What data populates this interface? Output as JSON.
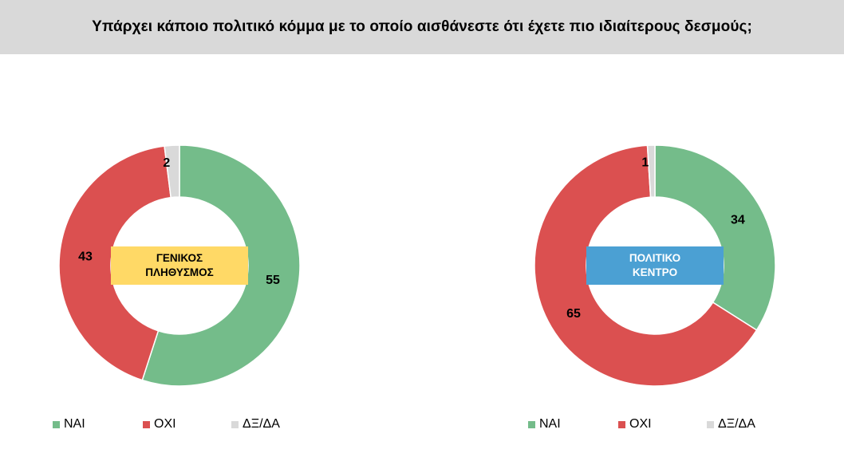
{
  "header": {
    "title": "Υπάρχει κάποιο πολιτικό κόμμα με το οποίο αισθάνεστε ότι έχετε πιο ιδιαίτερους δεσμούς;"
  },
  "colors": {
    "yes": "#74bc8a",
    "no": "#db5050",
    "dk": "#d9d9d9",
    "general_box": "#ffd966",
    "center_box": "#4ba0d3"
  },
  "chart_data": [
    {
      "type": "pie",
      "center_label": [
        "ΓΕΝΙΚΟΣ",
        "ΠΛΗΘΥΣΜΟΣ"
      ],
      "categories": [
        "ΝΑΙ",
        "ΟΧΙ",
        "ΔΞ/ΔΑ"
      ],
      "values": [
        55,
        43,
        2
      ],
      "legend": "bottom"
    },
    {
      "type": "pie",
      "center_label": [
        "ΠΟΛΙΤΙΚΟ",
        "ΚΕΝΤΡΟ"
      ],
      "categories": [
        "ΝΑΙ",
        "ΟΧΙ",
        "ΔΞ/ΔΑ"
      ],
      "values": [
        34,
        65,
        1
      ],
      "legend": "bottom"
    }
  ]
}
